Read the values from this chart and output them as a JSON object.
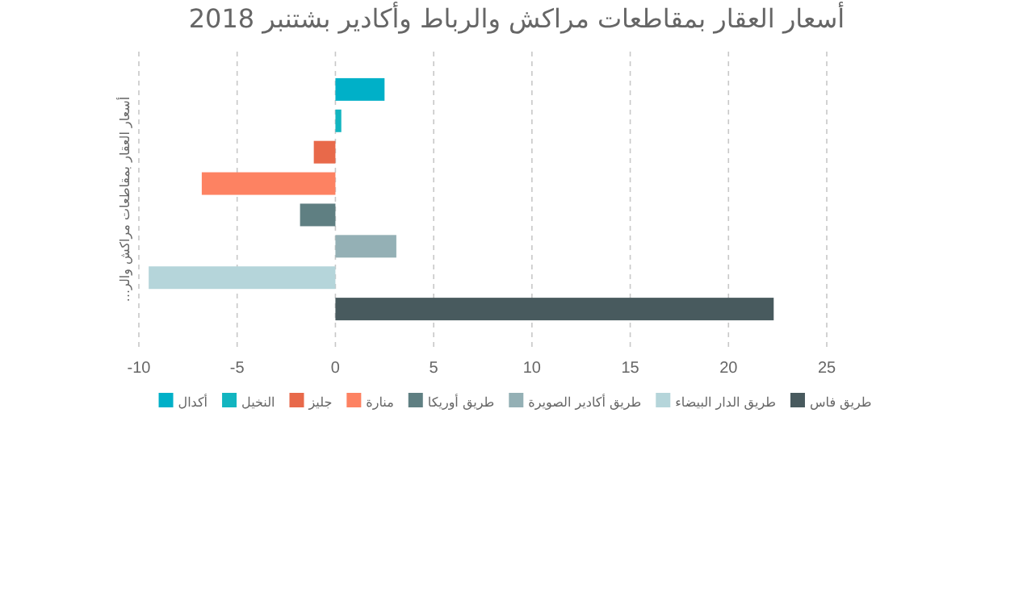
{
  "chart_data": {
    "type": "bar",
    "orientation": "horizontal",
    "title": "أسعار العقار بمقاطعات مراكش والرباط وأكادير بشتنبر 2018",
    "ylabel": "أسعار العقار بمقاطعات مراكش والر...",
    "categories": [
      null
    ],
    "series": [
      {
        "name": "أكدال",
        "color": "#00b0c8",
        "values": [
          2.5
        ]
      },
      {
        "name": "النخيل",
        "color": "#12b5c0",
        "values": [
          0.3
        ]
      },
      {
        "name": "جليز",
        "color": "#e8694a",
        "values": [
          -1.1
        ]
      },
      {
        "name": "منارة",
        "color": "#fd8262",
        "values": [
          -6.8
        ]
      },
      {
        "name": "طريق أوريكا",
        "color": "#5f7f82",
        "values": [
          -1.8
        ]
      },
      {
        "name": "طريق أكادير الصويرة",
        "color": "#94b0b5",
        "values": [
          3.1
        ]
      },
      {
        "name": "طريق الدار البيضاء",
        "color": "#b5d5da",
        "values": [
          -9.5
        ]
      },
      {
        "name": "طريق فاس",
        "color": "#485a5e",
        "values": [
          22.3
        ]
      }
    ],
    "xlim": [
      -10,
      25
    ],
    "xticks": [
      -10,
      -5,
      0,
      5,
      10,
      15,
      20,
      25
    ],
    "grid": "x",
    "legend": "bottom"
  }
}
